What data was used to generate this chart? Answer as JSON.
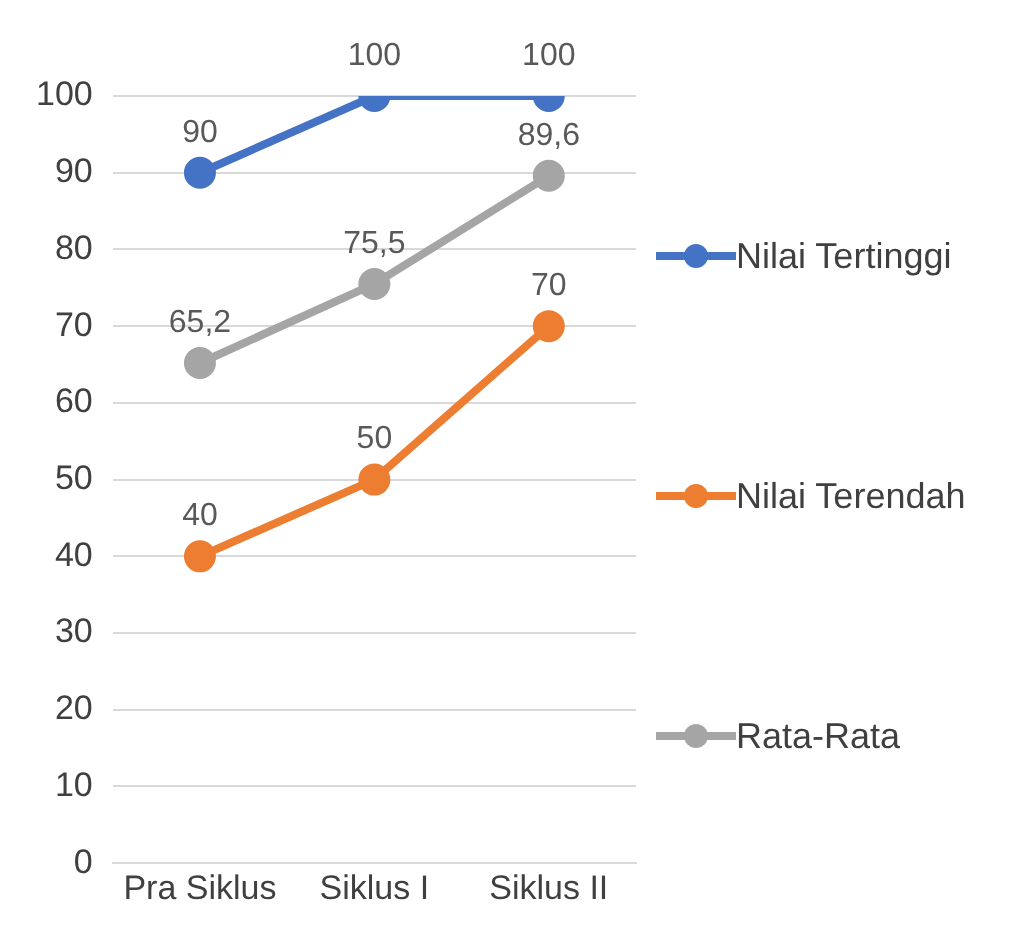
{
  "chart_data": {
    "type": "line",
    "categories": [
      "Pra Siklus",
      "Siklus I",
      "Siklus II"
    ],
    "series": [
      {
        "name": "Nilai Tertinggi",
        "color": "#4472c4",
        "values": [
          90,
          100,
          100
        ],
        "value_labels": [
          "90",
          "100",
          "100"
        ]
      },
      {
        "name": "Nilai Terendah",
        "color": "#ed7d31",
        "values": [
          40,
          50,
          70
        ],
        "value_labels": [
          "40",
          "50",
          "70"
        ]
      },
      {
        "name": "Rata-Rata",
        "color": "#a5a5a5",
        "values": [
          65.2,
          75.5,
          89.6
        ],
        "value_labels": [
          "65,2",
          "75,5",
          "89,6"
        ]
      }
    ],
    "ylim": [
      0,
      100
    ],
    "yticks": [
      0,
      10,
      20,
      30,
      40,
      50,
      60,
      70,
      80,
      90,
      100
    ],
    "grid": "y",
    "legend": "right",
    "marker": "circle",
    "line_style": "solid"
  }
}
